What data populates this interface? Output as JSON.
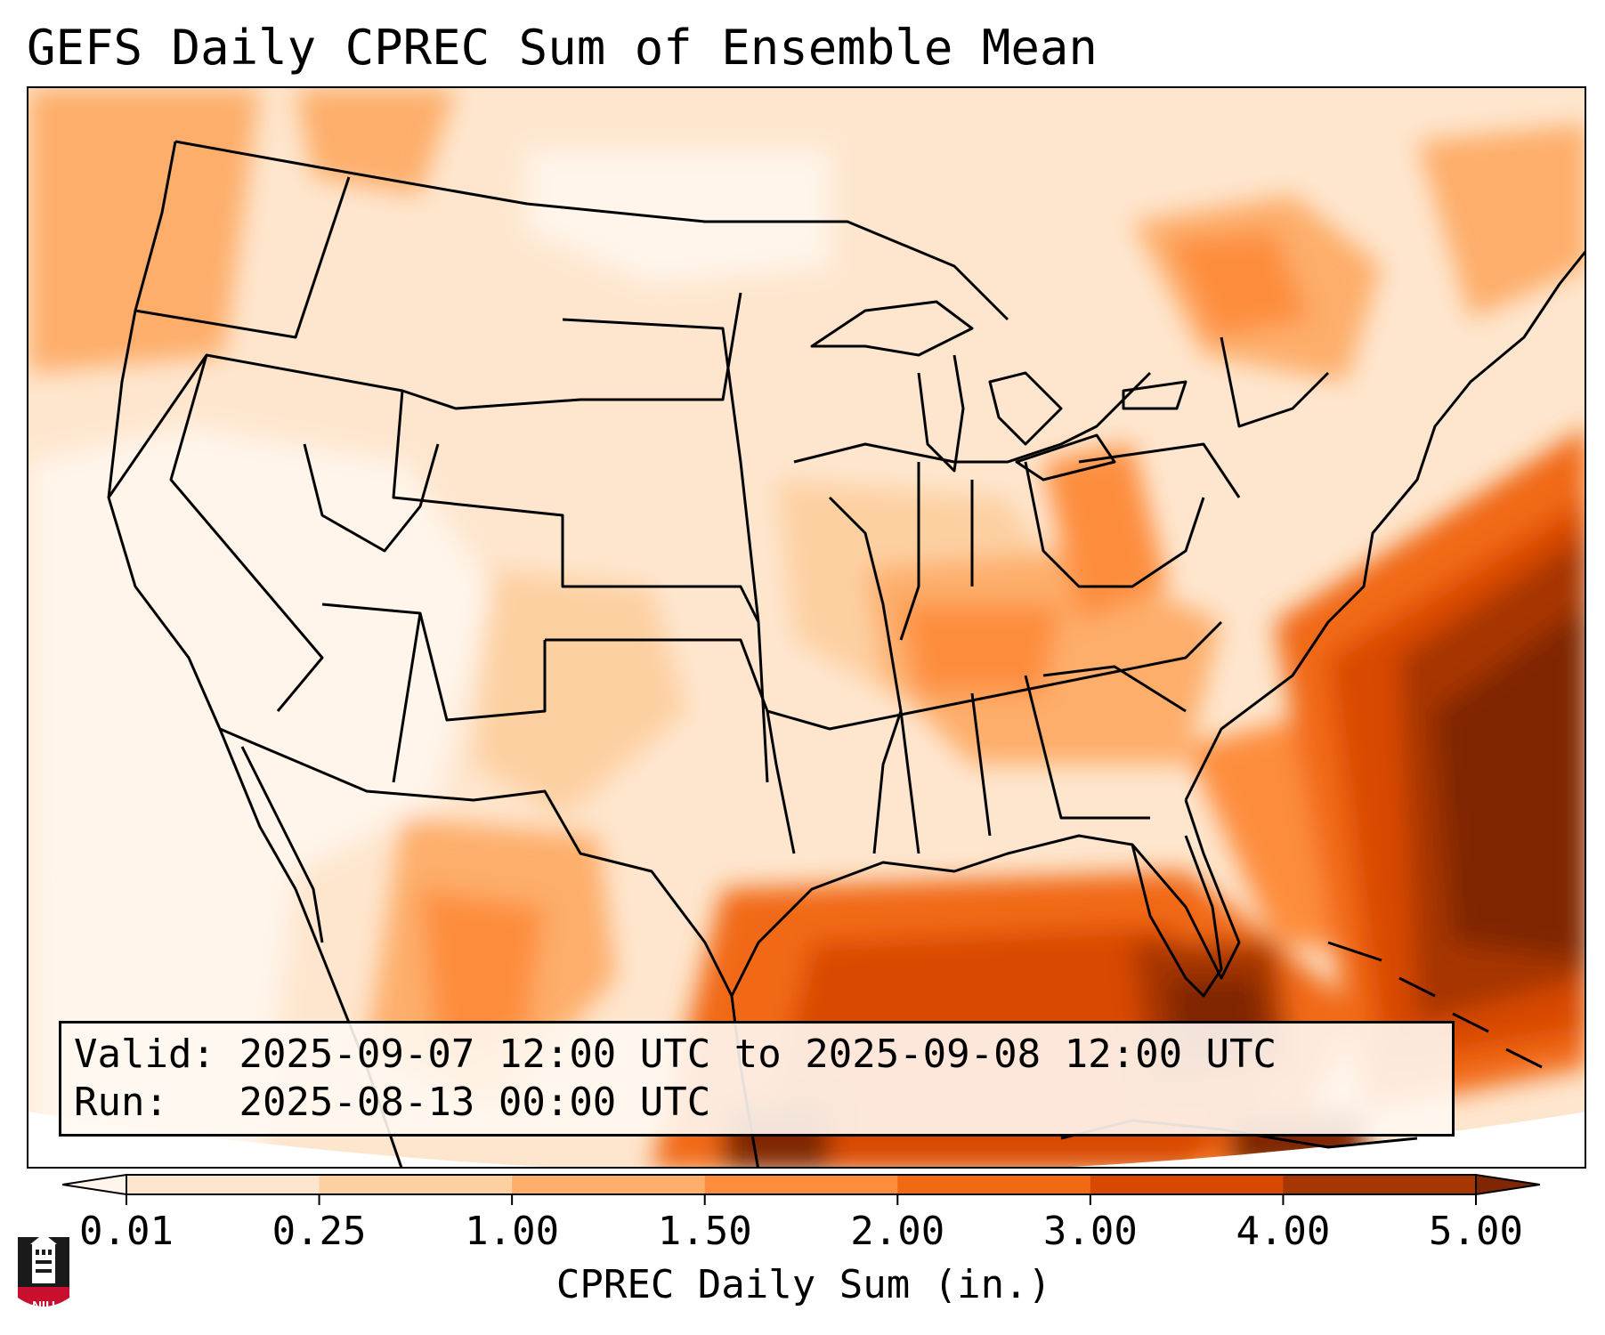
{
  "title": "GEFS Daily CPREC Sum of Ensemble Mean",
  "valid_label": "Valid:",
  "valid_value": "2025-09-07 12:00 UTC to 2025-09-08 12:00 UTC",
  "run_label": "Run:",
  "run_value": "2025-08-13 00:00 UTC",
  "colorbar": {
    "label": "CPREC Daily Sum (in.)",
    "ticks": [
      "0.01",
      "0.25",
      "1.00",
      "1.50",
      "2.00",
      "3.00",
      "4.00",
      "5.00"
    ],
    "colors": [
      "#fff5eb",
      "#fee6ce",
      "#fdd0a2",
      "#fdae6b",
      "#fd8d3c",
      "#f16913",
      "#d94801",
      "#a63603",
      "#7f2704"
    ],
    "extend": "both"
  },
  "map": {
    "region": "CONUS",
    "overlays": [
      "state-boundaries",
      "coastlines",
      "country-borders"
    ],
    "precip_colors": {
      "p0": "#fff5eb",
      "p1": "#fee6ce",
      "p2": "#fdd0a2",
      "p3": "#fdae6b",
      "p4": "#fd8d3c",
      "p5": "#f16913",
      "p6": "#d94801",
      "p7": "#a63603",
      "p8": "#7f2704"
    }
  },
  "logo": {
    "text": "NIU",
    "icon": "university-tower-icon",
    "color": "#c8102e"
  }
}
